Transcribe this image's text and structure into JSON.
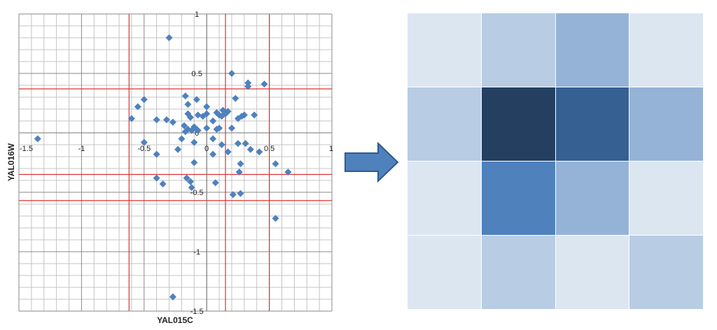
{
  "chart_data": [
    {
      "type": "scatter",
      "xlabel": "YAL015C",
      "ylabel": "YAL016W",
      "xlim": [
        -1.5,
        1
      ],
      "ylim": [
        -1.5,
        1
      ],
      "x_ticks": [
        "-1.5",
        "-1",
        "-0.5",
        "0",
        "0.5",
        "1"
      ],
      "y_ticks": [
        "1",
        "0.5",
        "0",
        "-0.5",
        "-1",
        "-1.5"
      ],
      "grid": true,
      "marker_color": "#4F81BD",
      "threshold_color": "#E03030",
      "vertical_thresholds": [
        -0.62,
        0.15,
        0.5
      ],
      "horizontal_thresholds": [
        0.37,
        -0.35,
        -0.57
      ],
      "points": [
        {
          "x": -1.35,
          "y": -0.05
        },
        {
          "x": -0.3,
          "y": 0.8
        },
        {
          "x": 0.2,
          "y": 0.5
        },
        {
          "x": 0.33,
          "y": 0.42
        },
        {
          "x": 0.33,
          "y": 0.39
        },
        {
          "x": 0.46,
          "y": 0.41
        },
        {
          "x": -0.17,
          "y": 0.31
        },
        {
          "x": -0.08,
          "y": 0.28
        },
        {
          "x": 0.23,
          "y": 0.29
        },
        {
          "x": -0.5,
          "y": 0.28
        },
        {
          "x": -0.55,
          "y": 0.22
        },
        {
          "x": -0.15,
          "y": 0.24
        },
        {
          "x": 0.0,
          "y": 0.22
        },
        {
          "x": -0.6,
          "y": 0.12
        },
        {
          "x": -0.15,
          "y": 0.16
        },
        {
          "x": -0.4,
          "y": 0.11
        },
        {
          "x": -0.32,
          "y": 0.11
        },
        {
          "x": -0.13,
          "y": 0.13
        },
        {
          "x": -0.07,
          "y": 0.15
        },
        {
          "x": -0.03,
          "y": 0.14
        },
        {
          "x": 0.0,
          "y": 0.16
        },
        {
          "x": 0.08,
          "y": 0.17
        },
        {
          "x": 0.1,
          "y": 0.15
        },
        {
          "x": 0.13,
          "y": 0.19
        },
        {
          "x": 0.17,
          "y": 0.18
        },
        {
          "x": 0.15,
          "y": 0.16
        },
        {
          "x": 0.12,
          "y": 0.14
        },
        {
          "x": 0.05,
          "y": 0.1
        },
        {
          "x": 0.28,
          "y": 0.14
        },
        {
          "x": 0.3,
          "y": 0.15
        },
        {
          "x": 0.38,
          "y": 0.15
        },
        {
          "x": -0.27,
          "y": 0.09
        },
        {
          "x": -0.18,
          "y": 0.06
        },
        {
          "x": -0.15,
          "y": 0.03
        },
        {
          "x": -0.1,
          "y": 0.05
        },
        {
          "x": -0.08,
          "y": 0.03
        },
        {
          "x": -0.17,
          "y": 0.01
        },
        {
          "x": -0.12,
          "y": 0.02
        },
        {
          "x": -0.07,
          "y": 0.02
        },
        {
          "x": 0.0,
          "y": 0.04
        },
        {
          "x": 0.08,
          "y": 0.03
        },
        {
          "x": 0.1,
          "y": 0.04
        },
        {
          "x": 0.2,
          "y": 0.04
        },
        {
          "x": 0.25,
          "y": 0.12
        },
        {
          "x": -0.2,
          "y": -0.05
        },
        {
          "x": -0.1,
          "y": -0.08
        },
        {
          "x": 0.05,
          "y": -0.05
        },
        {
          "x": -0.5,
          "y": -0.08
        },
        {
          "x": -0.23,
          "y": -0.14
        },
        {
          "x": 0.12,
          "y": -0.1
        },
        {
          "x": 0.25,
          "y": -0.09
        },
        {
          "x": 0.31,
          "y": -0.09
        },
        {
          "x": 0.35,
          "y": -0.14
        },
        {
          "x": 0.42,
          "y": -0.16
        },
        {
          "x": -0.4,
          "y": -0.18
        },
        {
          "x": 0.05,
          "y": -0.18
        },
        {
          "x": 0.17,
          "y": -0.16
        },
        {
          "x": 0.27,
          "y": -0.26
        },
        {
          "x": 0.55,
          "y": -0.26
        },
        {
          "x": -0.1,
          "y": -0.25
        },
        {
          "x": 0.65,
          "y": -0.33
        },
        {
          "x": 0.26,
          "y": -0.33
        },
        {
          "x": -0.4,
          "y": -0.38
        },
        {
          "x": -0.35,
          "y": -0.43
        },
        {
          "x": -0.16,
          "y": -0.38
        },
        {
          "x": -0.13,
          "y": -0.41
        },
        {
          "x": 0.07,
          "y": -0.42
        },
        {
          "x": -0.12,
          "y": -0.46
        },
        {
          "x": 0.21,
          "y": -0.52
        },
        {
          "x": 0.27,
          "y": -0.51
        },
        {
          "x": 0.55,
          "y": -0.72
        },
        {
          "x": -0.27,
          "y": -1.38
        }
      ]
    },
    {
      "type": "heatmap",
      "rows": 4,
      "cols": 4,
      "colors": [
        [
          "#DCE6F1",
          "#B8CCE4",
          "#95B3D7",
          "#DCE6F1"
        ],
        [
          "#B8CCE4",
          "#243F60",
          "#366092",
          "#95B3D7"
        ],
        [
          "#DCE6F1",
          "#4F81BD",
          "#95B3D7",
          "#DCE6F1"
        ],
        [
          "#DCE6F1",
          "#B8CCE4",
          "#DCE6F1",
          "#B8CCE4"
        ]
      ]
    }
  ],
  "arrow": {
    "icon": "right-arrow-icon",
    "fill": "#4F81BD",
    "stroke": "#2E5C8A"
  }
}
